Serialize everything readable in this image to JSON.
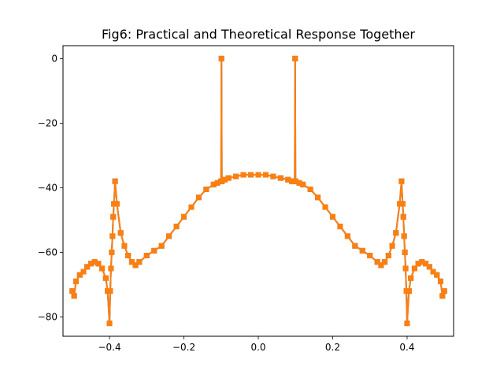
{
  "chart_data": {
    "type": "line",
    "title": "Fig6: Practical and Theoretical Response Together",
    "xlabel": "",
    "ylabel": "",
    "xlim": [
      -0.525,
      0.525
    ],
    "ylim": [
      -86,
      4
    ],
    "xticks": [
      -0.4,
      -0.2,
      0.0,
      0.2,
      0.4
    ],
    "xtick_labels": [
      "−0.4",
      "−0.2",
      "0.0",
      "0.2",
      "0.4"
    ],
    "yticks": [
      0,
      -20,
      -40,
      -60,
      -80
    ],
    "ytick_labels": [
      "0",
      "−20",
      "−40",
      "−60",
      "−80"
    ],
    "grid": false,
    "legend": "none",
    "marker": "square",
    "x": [
      -0.5,
      -0.495,
      -0.49,
      -0.48,
      -0.47,
      -0.46,
      -0.45,
      -0.44,
      -0.43,
      -0.42,
      -0.41,
      -0.405,
      -0.4,
      -0.398,
      -0.396,
      -0.394,
      -0.392,
      -0.39,
      -0.388,
      -0.385,
      -0.38,
      -0.37,
      -0.36,
      -0.35,
      -0.34,
      -0.33,
      -0.32,
      -0.3,
      -0.28,
      -0.26,
      -0.24,
      -0.22,
      -0.2,
      -0.18,
      -0.16,
      -0.14,
      -0.12,
      -0.11,
      -0.1,
      -0.099,
      -0.098,
      -0.09,
      -0.08,
      -0.06,
      -0.04,
      -0.02,
      0.0,
      0.02,
      0.04,
      0.06,
      0.08,
      0.09,
      0.098,
      0.099,
      0.1,
      0.11,
      0.12,
      0.14,
      0.16,
      0.18,
      0.2,
      0.22,
      0.24,
      0.26,
      0.28,
      0.3,
      0.32,
      0.33,
      0.34,
      0.35,
      0.36,
      0.37,
      0.38,
      0.385,
      0.388,
      0.39,
      0.392,
      0.394,
      0.396,
      0.398,
      0.4,
      0.405,
      0.41,
      0.42,
      0.43,
      0.44,
      0.45,
      0.46,
      0.47,
      0.48,
      0.49,
      0.495,
      0.5
    ],
    "series": [
      {
        "color": "#1f77b4",
        "values": [
          -72,
          -73.5,
          -69,
          -67,
          -66,
          -64.5,
          -63.5,
          -63,
          -63.5,
          -65,
          -68,
          -72,
          -82,
          -72,
          -65,
          -60,
          -55,
          -49,
          -45,
          -38,
          -45,
          -54,
          -58,
          -61,
          -63,
          -64,
          -63,
          -61,
          -59.5,
          -58,
          -55,
          -52,
          -49,
          -46,
          -43,
          -40.5,
          -39,
          -38.5,
          -38,
          0,
          -38,
          -37.5,
          -37,
          -36.5,
          -36,
          -36,
          -36,
          -36,
          -36.5,
          -37,
          -37.5,
          -38,
          -38,
          0,
          -38,
          -38.5,
          -39,
          -40.5,
          -43,
          -46,
          -49,
          -52,
          -55,
          -58,
          -59.5,
          -61,
          -63,
          -64,
          -63,
          -61,
          -58,
          -54,
          -45,
          -38,
          -45,
          -49,
          -55,
          -60,
          -65,
          -72,
          -82,
          -72,
          -68,
          -65,
          -63.5,
          -63,
          -63.5,
          -64.5,
          -66,
          -67,
          -69,
          -73.5,
          -72
        ]
      },
      {
        "color": "#ff7f0e",
        "values": [
          -72,
          -73.5,
          -69,
          -67,
          -66,
          -64.5,
          -63.5,
          -63,
          -63.5,
          -65,
          -68,
          -72,
          -82,
          -72,
          -65,
          -60,
          -55,
          -49,
          -45,
          -38,
          -45,
          -54,
          -58,
          -61,
          -63,
          -64,
          -63,
          -61,
          -59.5,
          -58,
          -55,
          -52,
          -49,
          -46,
          -43,
          -40.5,
          -39,
          -38.5,
          -38,
          0,
          -38,
          -37.5,
          -37,
          -36.5,
          -36,
          -36,
          -36,
          -36,
          -36.5,
          -37,
          -37.5,
          -38,
          -38,
          0,
          -38,
          -38.5,
          -39,
          -40.5,
          -43,
          -46,
          -49,
          -52,
          -55,
          -58,
          -59.5,
          -61,
          -63,
          -64,
          -63,
          -61,
          -58,
          -54,
          -45,
          -38,
          -45,
          -49,
          -55,
          -60,
          -65,
          -72,
          -82,
          -72,
          -68,
          -65,
          -63.5,
          -63,
          -63.5,
          -64.5,
          -66,
          -67,
          -69,
          -73.5,
          -72
        ]
      }
    ]
  }
}
